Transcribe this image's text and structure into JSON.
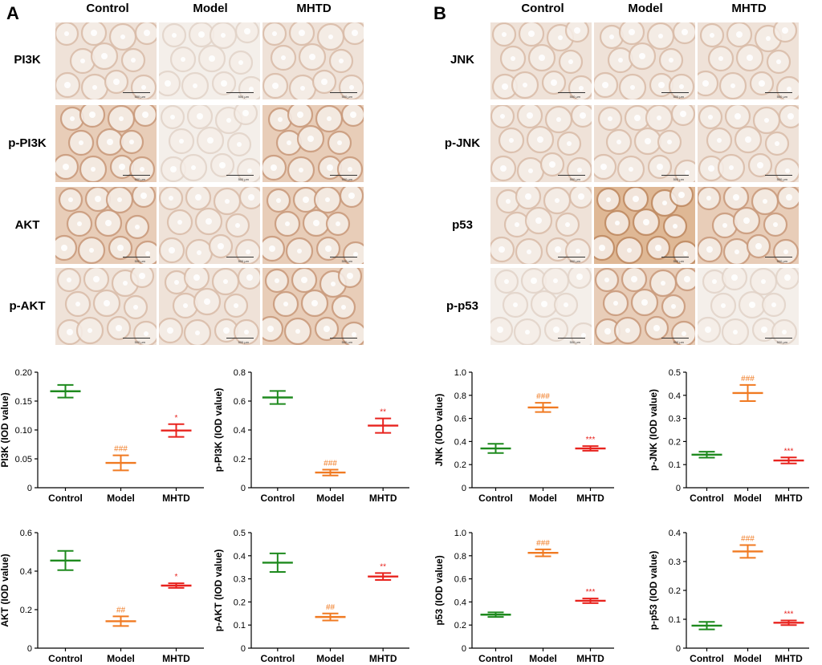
{
  "panels": [
    {
      "letter": "A",
      "columns": [
        "Control",
        "Model",
        "MHTD"
      ],
      "rows": [
        "PI3K",
        "p-PI3K",
        "AKT",
        "p-AKT"
      ],
      "scale_label": "500 µm"
    },
    {
      "letter": "B",
      "columns": [
        "Control",
        "Model",
        "MHTD"
      ],
      "rows": [
        "JNK",
        "p-JNK",
        "p53",
        "p-p53"
      ],
      "scale_label": "500 µm"
    }
  ],
  "colors": {
    "Control": "#1e8a1e",
    "Model": "#f07a22",
    "MHTD": "#e8231e",
    "stain_light": "#f3ebe4",
    "stain_mid": "#e9d3c2",
    "stain_dark": "#ddb596"
  },
  "tissue_tones": [
    [
      "light",
      "faint",
      "light",
      "light",
      "light",
      "light"
    ],
    [
      "mid",
      "faint",
      "mid",
      "light",
      "light",
      "light"
    ],
    [
      "mid",
      "light",
      "mid",
      "light",
      "dark",
      "mid"
    ],
    [
      "light",
      "light",
      "mid",
      "faint",
      "mid",
      "faint"
    ]
  ],
  "chart_data": [
    {
      "type": "scatter",
      "title": "",
      "xlabel": "",
      "ylabel": "PI3K (IOD value)",
      "categories": [
        "Control",
        "Model",
        "MHTD"
      ],
      "mean": [
        0.167,
        0.043,
        0.099
      ],
      "err": [
        0.011,
        0.013,
        0.011
      ],
      "annotations": [
        "",
        "###",
        "*"
      ],
      "ylim": [
        0,
        0.2
      ],
      "yticks": [
        "0",
        "0.05",
        "0.10",
        "0.15",
        "0.20"
      ]
    },
    {
      "type": "scatter",
      "title": "",
      "xlabel": "",
      "ylabel": "p-PI3K (IOD value)",
      "categories": [
        "Control",
        "Model",
        "MHTD"
      ],
      "mean": [
        0.625,
        0.105,
        0.43
      ],
      "err": [
        0.045,
        0.02,
        0.05
      ],
      "annotations": [
        "",
        "###",
        "**"
      ],
      "ylim": [
        0,
        0.8
      ],
      "yticks": [
        "0",
        "0.2",
        "0.4",
        "0.6",
        "0.8"
      ]
    },
    {
      "type": "scatter",
      "title": "",
      "xlabel": "",
      "ylabel": "AKT (IOD value)",
      "categories": [
        "Control",
        "Model",
        "MHTD"
      ],
      "mean": [
        0.455,
        0.14,
        0.325
      ],
      "err": [
        0.05,
        0.025,
        0.012
      ],
      "annotations": [
        "",
        "##",
        "*"
      ],
      "ylim": [
        0,
        0.6
      ],
      "yticks": [
        "0",
        "0.2",
        "0.4",
        "0.6"
      ]
    },
    {
      "type": "scatter",
      "title": "",
      "xlabel": "",
      "ylabel": "p-AKT (IOD value)",
      "categories": [
        "Control",
        "Model",
        "MHTD"
      ],
      "mean": [
        0.37,
        0.135,
        0.31
      ],
      "err": [
        0.04,
        0.015,
        0.015
      ],
      "annotations": [
        "",
        "##",
        "**"
      ],
      "ylim": [
        0,
        0.5
      ],
      "yticks": [
        "0",
        "0.1",
        "0.2",
        "0.3",
        "0.4",
        "0.5"
      ]
    },
    {
      "type": "scatter",
      "title": "",
      "xlabel": "",
      "ylabel": "JNK (IOD value)",
      "categories": [
        "Control",
        "Model",
        "MHTD"
      ],
      "mean": [
        0.34,
        0.695,
        0.34
      ],
      "err": [
        0.04,
        0.04,
        0.02
      ],
      "annotations": [
        "",
        "###",
        "***"
      ],
      "ylim": [
        0,
        1.0
      ],
      "yticks": [
        "0",
        "0.2",
        "0.4",
        "0.6",
        "0.8",
        "1.0"
      ]
    },
    {
      "type": "scatter",
      "title": "",
      "xlabel": "",
      "ylabel": "p-JNK (IOD value)",
      "categories": [
        "Control",
        "Model",
        "MHTD"
      ],
      "mean": [
        0.143,
        0.41,
        0.118
      ],
      "err": [
        0.013,
        0.035,
        0.013
      ],
      "annotations": [
        "",
        "###",
        "***"
      ],
      "ylim": [
        0,
        0.5
      ],
      "yticks": [
        "0",
        "0.1",
        "0.2",
        "0.3",
        "0.4",
        "0.5"
      ]
    },
    {
      "type": "scatter",
      "title": "",
      "xlabel": "",
      "ylabel": "p53 (IOD value)",
      "categories": [
        "Control",
        "Model",
        "MHTD"
      ],
      "mean": [
        0.29,
        0.825,
        0.41
      ],
      "err": [
        0.02,
        0.03,
        0.02
      ],
      "annotations": [
        "",
        "###",
        "***"
      ],
      "ylim": [
        0,
        1.0
      ],
      "yticks": [
        "0",
        "0.2",
        "0.4",
        "0.6",
        "0.8",
        "1.0"
      ]
    },
    {
      "type": "scatter",
      "title": "",
      "xlabel": "",
      "ylabel": "p-p53 (IOD value)",
      "categories": [
        "Control",
        "Model",
        "MHTD"
      ],
      "mean": [
        0.078,
        0.335,
        0.088
      ],
      "err": [
        0.013,
        0.022,
        0.008
      ],
      "annotations": [
        "",
        "###",
        "***"
      ],
      "ylim": [
        0,
        0.4
      ],
      "yticks": [
        "0",
        "0.1",
        "0.2",
        "0.3",
        "0.4"
      ]
    }
  ]
}
